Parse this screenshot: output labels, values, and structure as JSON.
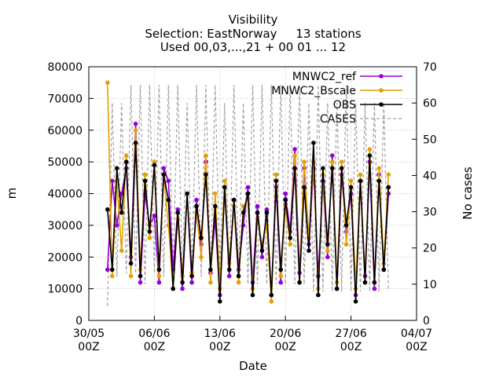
{
  "header": {
    "title": "Visibility",
    "subtitle_selection": "Selection: EastNorway     13 stations",
    "subtitle_used": "Used 00,03,...,21 + 00 01 ... 12"
  },
  "chart_data": {
    "type": "line",
    "xlabel": "Date",
    "ylabel": "m",
    "y2label": "No cases",
    "ylim": [
      0,
      80000
    ],
    "y2lim": [
      0,
      70
    ],
    "yticks": [
      "0",
      "10000",
      "20000",
      "30000",
      "40000",
      "50000",
      "60000",
      "70000",
      "80000"
    ],
    "y2ticks": [
      "0",
      "10",
      "20",
      "30",
      "40",
      "50",
      "60",
      "70"
    ],
    "xlim": [
      "2025-05-30T00:00",
      "2025-07-04T00:00"
    ],
    "xticks": [
      {
        "date": "2025-05-30T00:00",
        "line1": "30/05",
        "line2": "00Z"
      },
      {
        "date": "2025-06-06T00:00",
        "line1": "06/06",
        "line2": "00Z"
      },
      {
        "date": "2025-06-13T00:00",
        "line1": "13/06",
        "line2": "00Z"
      },
      {
        "date": "2025-06-20T00:00",
        "line1": "20/06",
        "line2": "00Z"
      },
      {
        "date": "2025-06-27T00:00",
        "line1": "27/06",
        "line2": "00Z"
      },
      {
        "date": "2025-07-04T00:00",
        "line1": "04/07",
        "line2": "00Z"
      }
    ],
    "grid": true,
    "legend_position": "top-right",
    "series": [
      {
        "name": "MNWC2_ref",
        "color": "#9400d3",
        "marker": "circle",
        "x": [
          "2025-06-01T00:00",
          "2025-06-01T12:00",
          "2025-06-02T00:00",
          "2025-06-02T12:00",
          "2025-06-03T00:00",
          "2025-06-03T12:00",
          "2025-06-04T00:00",
          "2025-06-04T12:00",
          "2025-06-05T00:00",
          "2025-06-05T12:00",
          "2025-06-06T00:00",
          "2025-06-06T12:00",
          "2025-06-07T00:00",
          "2025-06-07T12:00",
          "2025-06-08T00:00",
          "2025-06-08T12:00",
          "2025-06-09T00:00",
          "2025-06-09T12:00",
          "2025-06-10T00:00",
          "2025-06-10T12:00",
          "2025-06-11T00:00",
          "2025-06-11T12:00",
          "2025-06-12T00:00",
          "2025-06-12T12:00",
          "2025-06-13T00:00",
          "2025-06-13T12:00",
          "2025-06-14T00:00",
          "2025-06-14T12:00",
          "2025-06-15T00:00",
          "2025-06-15T12:00",
          "2025-06-16T00:00",
          "2025-06-16T12:00",
          "2025-06-17T00:00",
          "2025-06-17T12:00",
          "2025-06-18T00:00",
          "2025-06-18T12:00",
          "2025-06-19T00:00",
          "2025-06-19T12:00",
          "2025-06-20T00:00",
          "2025-06-20T12:00",
          "2025-06-21T00:00",
          "2025-06-21T12:00",
          "2025-06-22T00:00",
          "2025-06-22T12:00",
          "2025-06-23T00:00",
          "2025-06-23T12:00",
          "2025-06-24T00:00",
          "2025-06-24T12:00",
          "2025-06-25T00:00",
          "2025-06-25T12:00",
          "2025-06-26T00:00",
          "2025-06-26T12:00",
          "2025-06-27T00:00",
          "2025-06-27T12:00",
          "2025-06-28T00:00",
          "2025-06-28T12:00",
          "2025-06-29T00:00",
          "2025-06-29T12:00",
          "2025-06-30T00:00",
          "2025-06-30T12:00",
          "2025-07-01T00:00"
        ],
        "y": [
          16000,
          44000,
          30000,
          40000,
          48000,
          20000,
          62000,
          12000,
          40000,
          30000,
          33000,
          12000,
          48000,
          44000,
          16000,
          35000,
          10000,
          40000,
          12000,
          38000,
          24000,
          50000,
          15000,
          32000,
          8000,
          42000,
          14000,
          38000,
          16000,
          30000,
          42000,
          12000,
          36000,
          20000,
          35000,
          8000,
          42000,
          12000,
          40000,
          28000,
          54000,
          15000,
          48000,
          24000,
          48000,
          14000,
          44000,
          20000,
          52000,
          10000,
          46000,
          28000,
          40000,
          8000,
          44000,
          14000,
          50000,
          10000,
          46000,
          16000,
          40000
        ]
      },
      {
        "name": "MNWC2_Bscale",
        "color": "#e69f00",
        "marker": "circle",
        "x": [
          "2025-06-01T00:00",
          "2025-06-01T12:00",
          "2025-06-02T00:00",
          "2025-06-02T12:00",
          "2025-06-03T00:00",
          "2025-06-03T12:00",
          "2025-06-04T00:00",
          "2025-06-04T12:00",
          "2025-06-05T00:00",
          "2025-06-05T12:00",
          "2025-06-06T00:00",
          "2025-06-06T12:00",
          "2025-06-07T00:00",
          "2025-06-07T12:00",
          "2025-06-08T00:00",
          "2025-06-08T12:00",
          "2025-06-09T00:00",
          "2025-06-09T12:00",
          "2025-06-10T00:00",
          "2025-06-10T12:00",
          "2025-06-11T00:00",
          "2025-06-11T12:00",
          "2025-06-12T00:00",
          "2025-06-12T12:00",
          "2025-06-13T00:00",
          "2025-06-13T12:00",
          "2025-06-14T00:00",
          "2025-06-14T12:00",
          "2025-06-15T00:00",
          "2025-06-15T12:00",
          "2025-06-16T00:00",
          "2025-06-16T12:00",
          "2025-06-17T00:00",
          "2025-06-17T12:00",
          "2025-06-18T00:00",
          "2025-06-18T12:00",
          "2025-06-19T00:00",
          "2025-06-19T12:00",
          "2025-06-20T00:00",
          "2025-06-20T12:00",
          "2025-06-21T00:00",
          "2025-06-21T12:00",
          "2025-06-22T00:00",
          "2025-06-22T12:00",
          "2025-06-23T00:00",
          "2025-06-23T12:00",
          "2025-06-24T00:00",
          "2025-06-24T12:00",
          "2025-06-25T00:00",
          "2025-06-25T12:00",
          "2025-06-26T00:00",
          "2025-06-26T12:00",
          "2025-06-27T00:00",
          "2025-06-27T12:00",
          "2025-06-28T00:00",
          "2025-06-28T12:00",
          "2025-06-29T00:00",
          "2025-06-29T12:00",
          "2025-06-30T00:00",
          "2025-06-30T12:00",
          "2025-07-01T00:00"
        ],
        "y": [
          75000,
          14000,
          44000,
          22000,
          52000,
          14000,
          60000,
          16000,
          46000,
          26000,
          50000,
          14000,
          46000,
          30000,
          10000,
          32000,
          14000,
          40000,
          15000,
          34000,
          20000,
          52000,
          12000,
          40000,
          10000,
          44000,
          18000,
          36000,
          12000,
          36000,
          38000,
          10000,
          32000,
          24000,
          30000,
          6000,
          46000,
          14000,
          36000,
          24000,
          52000,
          12000,
          50000,
          26000,
          50000,
          10000,
          46000,
          22000,
          50000,
          12000,
          50000,
          24000,
          44000,
          10000,
          46000,
          12000,
          54000,
          12000,
          48000,
          18000,
          46000
        ]
      },
      {
        "name": "OBS",
        "color": "#000000",
        "marker": "circle",
        "x": [
          "2025-06-01T00:00",
          "2025-06-01T12:00",
          "2025-06-02T00:00",
          "2025-06-02T12:00",
          "2025-06-03T00:00",
          "2025-06-03T12:00",
          "2025-06-04T00:00",
          "2025-06-04T12:00",
          "2025-06-05T00:00",
          "2025-06-05T12:00",
          "2025-06-06T00:00",
          "2025-06-06T12:00",
          "2025-06-07T00:00",
          "2025-06-07T12:00",
          "2025-06-08T00:00",
          "2025-06-08T12:00",
          "2025-06-09T00:00",
          "2025-06-09T12:00",
          "2025-06-10T00:00",
          "2025-06-10T12:00",
          "2025-06-11T00:00",
          "2025-06-11T12:00",
          "2025-06-12T00:00",
          "2025-06-12T12:00",
          "2025-06-13T00:00",
          "2025-06-13T12:00",
          "2025-06-14T00:00",
          "2025-06-14T12:00",
          "2025-06-15T00:00",
          "2025-06-15T12:00",
          "2025-06-16T00:00",
          "2025-06-16T12:00",
          "2025-06-17T00:00",
          "2025-06-17T12:00",
          "2025-06-18T00:00",
          "2025-06-18T12:00",
          "2025-06-19T00:00",
          "2025-06-19T12:00",
          "2025-06-20T00:00",
          "2025-06-20T12:00",
          "2025-06-21T00:00",
          "2025-06-21T12:00",
          "2025-06-22T00:00",
          "2025-06-22T12:00",
          "2025-06-23T00:00",
          "2025-06-23T12:00",
          "2025-06-24T00:00",
          "2025-06-24T12:00",
          "2025-06-25T00:00",
          "2025-06-25T12:00",
          "2025-06-26T00:00",
          "2025-06-26T12:00",
          "2025-06-27T00:00",
          "2025-06-27T12:00",
          "2025-06-28T00:00",
          "2025-06-28T12:00",
          "2025-06-29T00:00",
          "2025-06-29T12:00",
          "2025-06-30T00:00",
          "2025-06-30T12:00",
          "2025-07-01T00:00"
        ],
        "y": [
          35000,
          16000,
          48000,
          34000,
          50000,
          18000,
          56000,
          14000,
          44000,
          28000,
          49000,
          16000,
          46000,
          38000,
          10000,
          34000,
          12000,
          40000,
          14000,
          36000,
          26000,
          46000,
          16000,
          36000,
          6000,
          42000,
          16000,
          38000,
          14000,
          34000,
          40000,
          8000,
          34000,
          22000,
          34000,
          8000,
          44000,
          16000,
          38000,
          26000,
          48000,
          12000,
          42000,
          22000,
          56000,
          8000,
          48000,
          24000,
          48000,
          10000,
          48000,
          30000,
          42000,
          6000,
          44000,
          12000,
          52000,
          12000,
          44000,
          16000,
          42000
        ]
      },
      {
        "name": "CASES",
        "color": "#a0a0a0",
        "dash": true,
        "axis": "y2",
        "x": [
          "2025-06-01T00:00",
          "2025-06-01T12:00",
          "2025-06-02T00:00",
          "2025-06-02T12:00",
          "2025-06-03T00:00",
          "2025-06-03T12:00",
          "2025-06-04T00:00",
          "2025-06-04T12:00",
          "2025-06-05T00:00",
          "2025-06-05T12:00",
          "2025-06-06T00:00",
          "2025-06-06T12:00",
          "2025-06-07T00:00",
          "2025-06-07T12:00",
          "2025-06-08T00:00",
          "2025-06-08T12:00",
          "2025-06-09T00:00",
          "2025-06-09T12:00",
          "2025-06-10T00:00",
          "2025-06-10T12:00",
          "2025-06-11T00:00",
          "2025-06-11T12:00",
          "2025-06-12T00:00",
          "2025-06-12T12:00",
          "2025-06-13T00:00",
          "2025-06-13T12:00",
          "2025-06-14T00:00",
          "2025-06-14T12:00",
          "2025-06-15T00:00",
          "2025-06-15T12:00",
          "2025-06-16T00:00",
          "2025-06-16T12:00",
          "2025-06-17T00:00",
          "2025-06-17T12:00",
          "2025-06-18T00:00",
          "2025-06-18T12:00",
          "2025-06-19T00:00",
          "2025-06-19T12:00",
          "2025-06-20T00:00",
          "2025-06-20T12:00",
          "2025-06-21T00:00",
          "2025-06-21T12:00",
          "2025-06-22T00:00",
          "2025-06-22T12:00",
          "2025-06-23T00:00",
          "2025-06-23T12:00",
          "2025-06-24T00:00",
          "2025-06-24T12:00",
          "2025-06-25T00:00",
          "2025-06-25T12:00",
          "2025-06-26T00:00",
          "2025-06-26T12:00",
          "2025-06-27T00:00",
          "2025-06-27T12:00",
          "2025-06-28T00:00",
          "2025-06-28T12:00",
          "2025-06-29T00:00",
          "2025-06-29T12:00",
          "2025-06-30T00:00",
          "2025-06-30T12:00",
          "2025-07-01T00:00"
        ],
        "y": [
          4,
          60,
          12,
          60,
          13,
          65,
          13,
          65,
          10,
          65,
          13,
          65,
          12,
          65,
          13,
          65,
          12,
          60,
          13,
          65,
          12,
          65,
          13,
          65,
          12,
          60,
          12,
          65,
          12,
          60,
          10,
          65,
          10,
          65,
          10,
          65,
          10,
          65,
          10,
          65,
          10,
          65,
          10,
          60,
          8,
          65,
          8,
          60,
          8,
          60,
          8,
          65,
          8,
          60,
          8,
          60,
          8,
          60,
          8,
          60,
          8
        ]
      }
    ]
  }
}
